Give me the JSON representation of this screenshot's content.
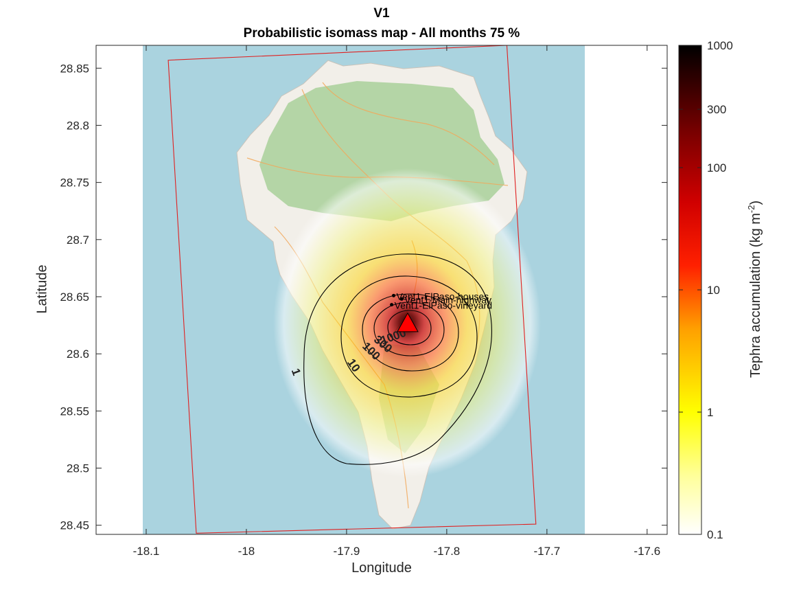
{
  "figure": {
    "title_line1": "V1",
    "title_line2": "Probabilistic isomass map - All months 75 %"
  },
  "map": {
    "xlabel": "Longitude",
    "ylabel": "Latitude",
    "xlim": [
      -18.15,
      -17.58
    ],
    "ylim": [
      28.442,
      28.87
    ],
    "xticks": [
      -18.1,
      -18.0,
      -17.9,
      -17.8,
      -17.7,
      -17.6
    ],
    "xtick_labels": [
      "-18.1",
      "-18",
      "-17.9",
      "-17.8",
      "-17.7",
      "-17.6"
    ],
    "yticks": [
      28.45,
      28.5,
      28.55,
      28.6,
      28.65,
      28.7,
      28.75,
      28.8,
      28.85
    ],
    "ytick_labels": [
      "28.45",
      "28.5",
      "28.55",
      "28.6",
      "28.65",
      "28.7",
      "28.75",
      "28.8",
      "28.85"
    ],
    "basemap_extent": {
      "lon": [
        -18.106,
        -17.664
      ],
      "lat": [
        28.442,
        28.87
      ]
    },
    "domain_box_corners": [
      [
        -18.078,
        28.857
      ],
      [
        -17.74,
        28.87
      ],
      [
        -17.711,
        28.451
      ],
      [
        -18.05,
        28.443
      ]
    ],
    "vent": {
      "lon": -17.839,
      "lat": 28.626,
      "color": "#ff0000"
    },
    "points": [
      {
        "label": "Vent1-ElPaso-houses",
        "lon": -17.853,
        "lat": 28.651
      },
      {
        "label": "Vent1-Main-highway",
        "lon": -17.845,
        "lat": 28.648
      },
      {
        "label": "Vent1-ElPaso-vineyard",
        "lon": -17.855,
        "lat": 28.643
      }
    ],
    "contours": [
      {
        "level": 1,
        "label": "1"
      },
      {
        "level": 10,
        "label": "10"
      },
      {
        "level": 100,
        "label": "100"
      },
      {
        "level": 300,
        "label": "300"
      },
      {
        "level": 1000,
        "label": "1000"
      }
    ],
    "colors": {
      "sea": "#aad3df",
      "land": "#f2efe9",
      "forest": "#add19e",
      "box": "#e02020"
    }
  },
  "colorbar": {
    "label": "Tephra accumulation (kg m",
    "label_exp": "-2",
    "label_close": ")",
    "scale": "log",
    "range": [
      0.1,
      1000
    ],
    "ticks": [
      0.1,
      1,
      10,
      100,
      300,
      1000
    ],
    "tick_labels": [
      "0.1",
      "1",
      "10",
      "100",
      "300",
      "1000"
    ],
    "colormap": "hot (reversed)"
  }
}
